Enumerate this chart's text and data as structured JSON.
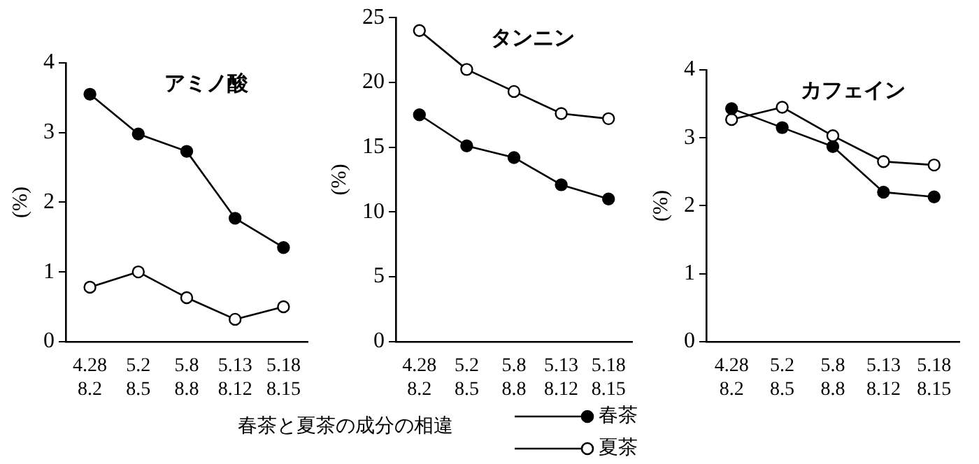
{
  "chart_data": [
    {
      "type": "line",
      "title": "アミノ酸",
      "ylabel": "(%)",
      "categories": [
        "4.28\n8.2",
        "5.2\n8.5",
        "5.8\n8.8",
        "5.13\n8.12",
        "5.18\n8.15"
      ],
      "series": [
        {
          "color": "#000000",
          "values": [
            3.55,
            2.98,
            2.73,
            1.77,
            1.35
          ]
        },
        {
          "color": "#000000",
          "values": [
            0.78,
            1.0,
            0.63,
            0.32,
            0.5
          ]
        }
      ],
      "ylim": [
        0,
        4
      ],
      "yticks": [
        0,
        1,
        2,
        3,
        4
      ],
      "grid": false,
      "marker": "circle",
      "line_style": "solid",
      "annotations": [
        "春茶と夏茶の成分の相違"
      ]
    },
    {
      "type": "line",
      "title": "タンニン",
      "ylabel": "(%)",
      "categories": [
        "4.28\n8.2",
        "5.2\n8.5",
        "5.8\n8.8",
        "5.13\n8.12",
        "5.18\n8.15"
      ],
      "series": [
        {
          "name": "春茶",
          "color": "#000000",
          "values": [
            17.5,
            15.1,
            14.2,
            12.1,
            11.0
          ]
        },
        {
          "name": "夏茶",
          "color": "#000000",
          "values": [
            24.0,
            21.0,
            19.3,
            17.6,
            17.2
          ]
        }
      ],
      "ylim": [
        0,
        25
      ],
      "yticks": [
        0,
        5,
        10,
        15,
        20,
        25
      ],
      "grid": false,
      "marker": "circle",
      "line_style": "solid",
      "legend": "bottom"
    },
    {
      "type": "line",
      "title": "カフェイン",
      "ylabel": "(%)",
      "categories": [
        "4.28\n8.2",
        "5.2\n8.5",
        "5.8\n8.8",
        "5.13\n8.12",
        "5.18\n8.15"
      ],
      "series": [
        {
          "color": "#000000",
          "values": [
            3.43,
            3.15,
            2.87,
            2.2,
            2.13
          ]
        },
        {
          "color": "#000000",
          "values": [
            3.27,
            3.45,
            3.03,
            2.65,
            2.6
          ]
        }
      ],
      "ylim": [
        0,
        4
      ],
      "yticks": [
        0,
        1,
        2,
        3,
        4
      ],
      "grid": false,
      "marker": "circle",
      "line_style": "solid"
    }
  ]
}
